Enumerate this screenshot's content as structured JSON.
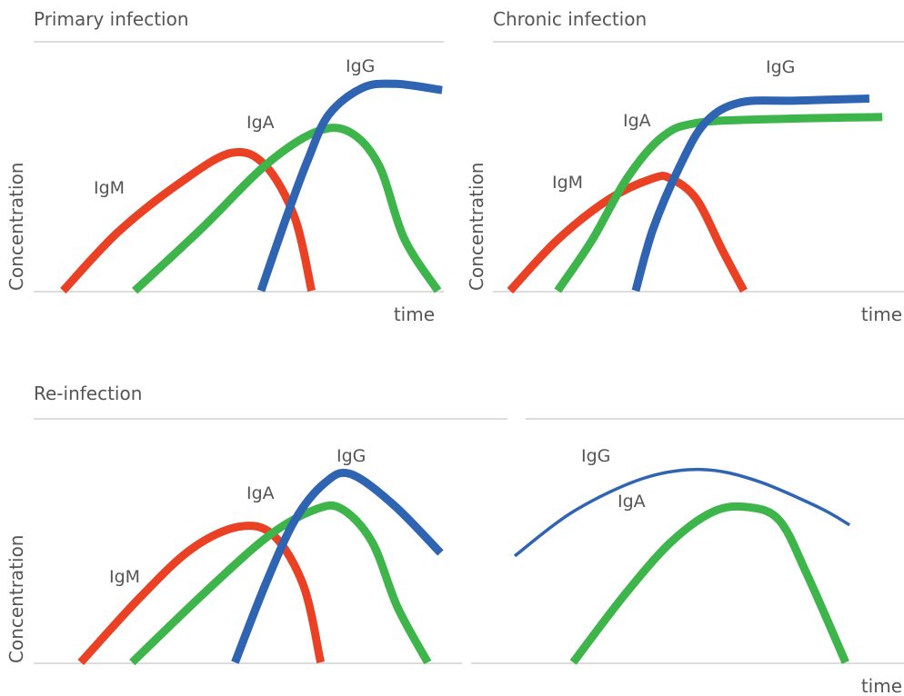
{
  "colors": {
    "IgM": "#ea4125",
    "IgA": "#3db54a",
    "IgG": "#2f64b3",
    "text": "#555555",
    "rule": "#c8c8c8"
  },
  "chart_data": [
    {
      "type": "line",
      "title": "Primary infection",
      "xlabel": "time",
      "ylabel": "Concentration",
      "xlim": [
        0,
        100
      ],
      "ylim": [
        0,
        100
      ],
      "grid": false,
      "legend": "inline labels",
      "series": [
        {
          "name": "IgM",
          "thickness": "thick",
          "points": [
            [
              7,
              0
            ],
            [
              20,
              28
            ],
            [
              35,
              52
            ],
            [
              47,
              66
            ],
            [
              55,
              60
            ],
            [
              62,
              35
            ],
            [
              66,
              0
            ]
          ]
        },
        {
          "name": "IgA",
          "thickness": "thick",
          "points": [
            [
              24,
              0
            ],
            [
              40,
              30
            ],
            [
              55,
              60
            ],
            [
              67,
              76
            ],
            [
              75,
              76
            ],
            [
              82,
              60
            ],
            [
              88,
              25
            ],
            [
              96,
              0
            ]
          ]
        },
        {
          "name": "IgG",
          "thickness": "thick",
          "points": [
            [
              54,
              0
            ],
            [
              60,
              35
            ],
            [
              65,
              62
            ],
            [
              70,
              84
            ],
            [
              78,
              97
            ],
            [
              86,
              99
            ],
            [
              97,
              96
            ]
          ]
        }
      ]
    },
    {
      "type": "line",
      "title": "Chronic infection",
      "xlabel": "time",
      "ylabel": "Concentration",
      "xlim": [
        0,
        100
      ],
      "ylim": [
        0,
        100
      ],
      "grid": false,
      "legend": "inline labels",
      "series": [
        {
          "name": "IgM",
          "thickness": "thick",
          "points": [
            [
              9,
              0
            ],
            [
              20,
              25
            ],
            [
              32,
              45
            ],
            [
              42,
              55
            ],
            [
              46,
              55
            ],
            [
              52,
              45
            ],
            [
              58,
              20
            ],
            [
              63,
              0
            ]
          ]
        },
        {
          "name": "IgA",
          "thickness": "thick",
          "points": [
            [
              20,
              0
            ],
            [
              28,
              25
            ],
            [
              36,
              55
            ],
            [
              44,
              75
            ],
            [
              52,
              82
            ],
            [
              70,
              84
            ],
            [
              95,
              85
            ]
          ]
        },
        {
          "name": "IgG",
          "thickness": "thick",
          "points": [
            [
              38,
              0
            ],
            [
              42,
              30
            ],
            [
              48,
              60
            ],
            [
              54,
              82
            ],
            [
              62,
              92
            ],
            [
              75,
              93
            ],
            [
              92,
              94
            ]
          ]
        }
      ]
    },
    {
      "type": "line",
      "title": "Re-infection",
      "xlabel": "",
      "ylabel": "Concentration",
      "xlim": [
        0,
        100
      ],
      "ylim": [
        0,
        100
      ],
      "grid": false,
      "legend": "inline labels",
      "series": [
        {
          "name": "IgM",
          "thickness": "thick",
          "points": [
            [
              11,
              0
            ],
            [
              25,
              30
            ],
            [
              37,
              52
            ],
            [
              48,
              62
            ],
            [
              56,
              58
            ],
            [
              63,
              35
            ],
            [
              67,
              0
            ]
          ]
        },
        {
          "name": "IgA",
          "thickness": "thick",
          "points": [
            [
              23,
              0
            ],
            [
              40,
              32
            ],
            [
              55,
              58
            ],
            [
              66,
              70
            ],
            [
              72,
              70
            ],
            [
              79,
              55
            ],
            [
              85,
              25
            ],
            [
              92,
              0
            ]
          ]
        },
        {
          "name": "IgG",
          "thickness": "thick",
          "points": [
            [
              47,
              0
            ],
            [
              54,
              35
            ],
            [
              61,
              65
            ],
            [
              68,
              82
            ],
            [
              74,
              86
            ],
            [
              84,
              72
            ],
            [
              95,
              50
            ]
          ]
        }
      ]
    },
    {
      "type": "line",
      "title": "",
      "xlabel": "time",
      "ylabel": "",
      "xlim": [
        0,
        100
      ],
      "ylim": [
        0,
        100
      ],
      "grid": false,
      "legend": "inline labels",
      "series": [
        {
          "name": "IgG",
          "thickness": "thin",
          "points": [
            [
              0,
              48
            ],
            [
              15,
              68
            ],
            [
              33,
              83
            ],
            [
              48,
              87
            ],
            [
              62,
              82
            ],
            [
              78,
              70
            ],
            [
              86,
              62
            ]
          ]
        },
        {
          "name": "IgA",
          "thickness": "thick",
          "points": [
            [
              15,
              0
            ],
            [
              28,
              30
            ],
            [
              40,
              54
            ],
            [
              51,
              68
            ],
            [
              60,
              70
            ],
            [
              68,
              64
            ],
            [
              75,
              40
            ],
            [
              85,
              0
            ]
          ]
        }
      ]
    }
  ]
}
